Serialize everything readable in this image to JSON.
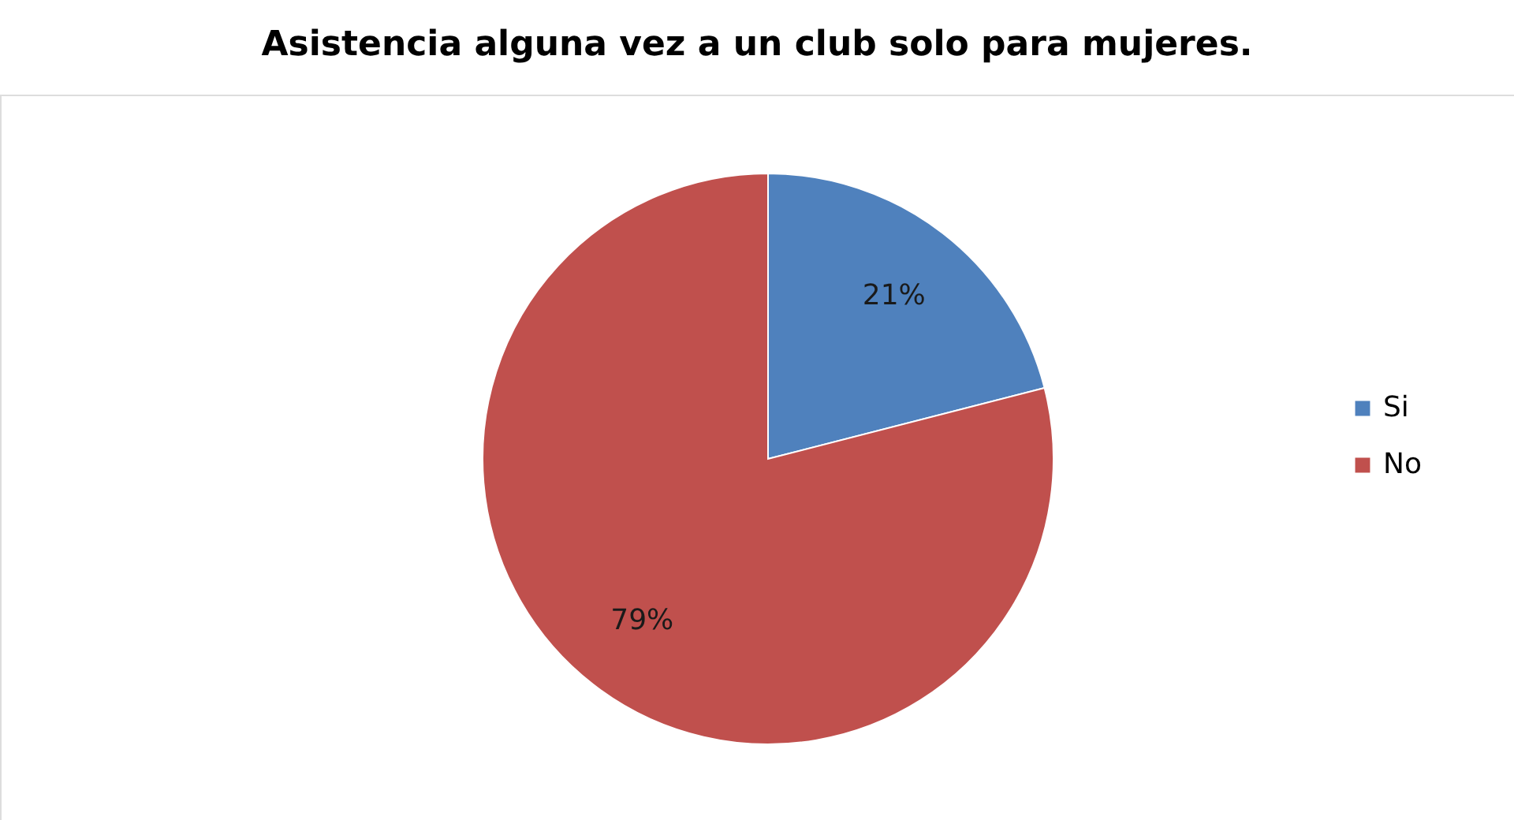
{
  "chart_data": {
    "type": "pie",
    "title": "Asistencia alguna vez a un club solo para mujeres.",
    "categories": [
      "Si",
      "No"
    ],
    "values": [
      21,
      79
    ],
    "colors": [
      "#4f81bd",
      "#c0504d"
    ],
    "value_labels": [
      "21%",
      "79%"
    ],
    "legend": "right"
  }
}
